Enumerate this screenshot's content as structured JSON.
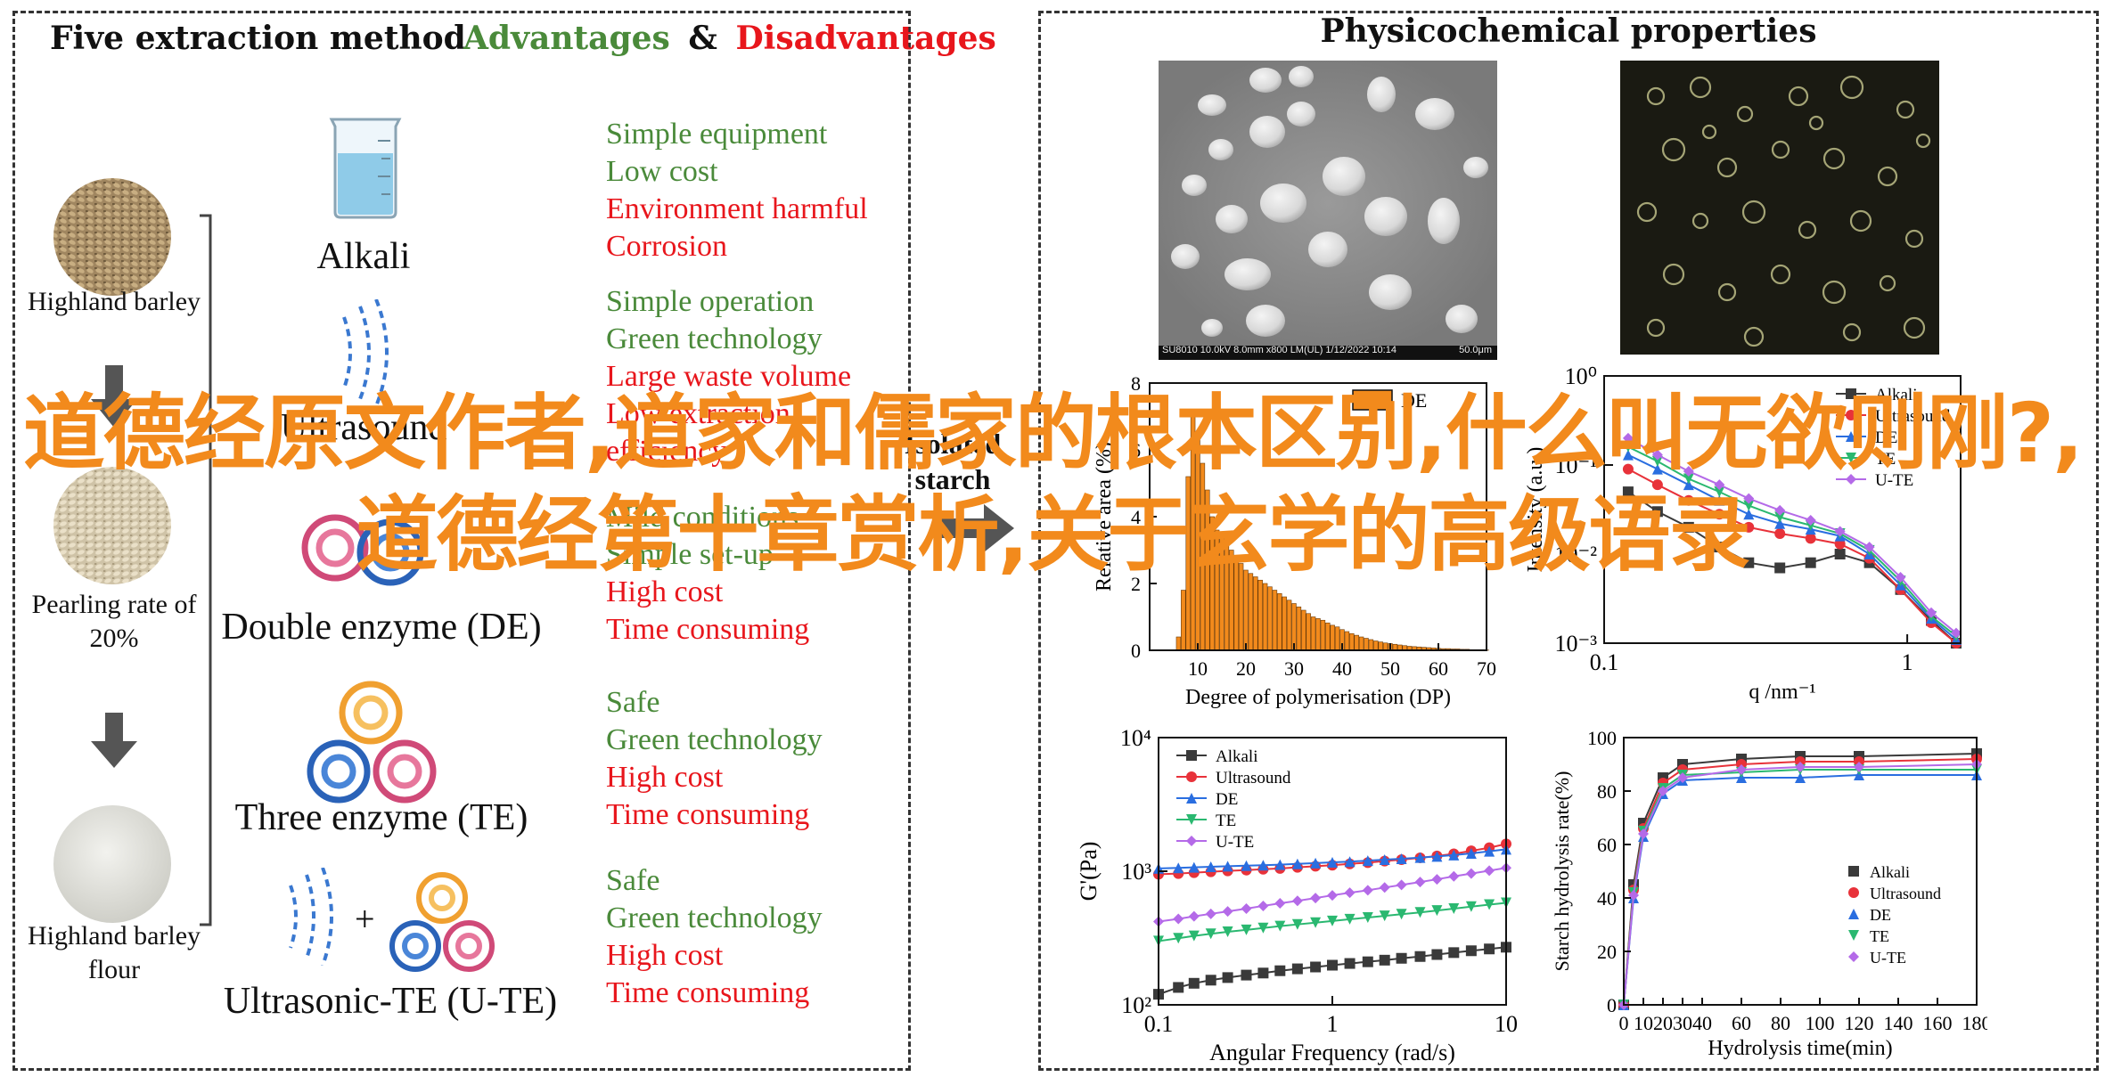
{
  "left_panel": {
    "title": "Five extraction method",
    "adv_label": "Advantages",
    "amp": "&",
    "dis_label": "Disadvantages",
    "raw": [
      {
        "label": "Highland barley"
      },
      {
        "label": "Pearling rate of 20%"
      },
      {
        "label": "Highland barley flour"
      }
    ],
    "methods": [
      {
        "name": "Alkali",
        "points": [
          {
            "text": "Simple equipment",
            "kind": "adv"
          },
          {
            "text": "Low cost",
            "kind": "adv"
          },
          {
            "text": "Environment harmful",
            "kind": "dis"
          },
          {
            "text": "Corrosion",
            "kind": "dis"
          }
        ]
      },
      {
        "name": "Ultrasound",
        "points": [
          {
            "text": "Simple operation",
            "kind": "adv"
          },
          {
            "text": "Green technology",
            "kind": "adv"
          },
          {
            "text": "Large waste volume",
            "kind": "dis"
          },
          {
            "text": "Low extraction",
            "kind": "dis"
          },
          {
            "text": "efficiency",
            "kind": "dis"
          }
        ]
      },
      {
        "name": "Double enzyme (DE)",
        "points": [
          {
            "text": "Mild conditions",
            "kind": "adv"
          },
          {
            "text": "Simple set-up",
            "kind": "adv"
          },
          {
            "text": "High cost",
            "kind": "dis"
          },
          {
            "text": "Time consuming",
            "kind": "dis"
          }
        ]
      },
      {
        "name": "Three enzyme (TE)",
        "points": [
          {
            "text": "Safe",
            "kind": "adv"
          },
          {
            "text": "Green technology",
            "kind": "adv"
          },
          {
            "text": "High cost",
            "kind": "dis"
          },
          {
            "text": "Time consuming",
            "kind": "dis"
          }
        ]
      },
      {
        "name": "Ultrasonic-TE (U-TE)",
        "points": [
          {
            "text": "Safe",
            "kind": "adv"
          },
          {
            "text": "Green technology",
            "kind": "adv"
          },
          {
            "text": "High cost",
            "kind": "dis"
          },
          {
            "text": "Time consuming",
            "kind": "dis"
          }
        ]
      }
    ],
    "isolated_label": "Isolated starch",
    "plus": "+"
  },
  "right_panel": {
    "title": "Physicochemical properties",
    "sem_caption": "SU8010 10.0kV 8.0mm x800 LM(UL) 1/12/2022 10:14",
    "sem_scale": "50.0μm"
  },
  "colors": {
    "adv": "#4a8a3a",
    "dis": "#e8161c",
    "overlay": "#f28a1c",
    "Alkali": "#3a3a3a",
    "Ultrasound": "#e8323a",
    "DE": "#2a6ee0",
    "TE": "#2ab870",
    "U-TE": "#b46ae8",
    "histogram": "#f28a1c"
  },
  "chart_data": [
    {
      "type": "bar",
      "legend": [
        "DE"
      ],
      "xlabel": "Degree of polymerisation (DP)",
      "ylabel": "Relative area (%)",
      "xticks": [
        10,
        20,
        30,
        40,
        50,
        60,
        70
      ],
      "yticks": [
        0,
        2,
        4,
        6,
        8
      ],
      "xlim": [
        0,
        70
      ],
      "ylim": [
        0,
        8
      ],
      "dp": [
        6,
        7,
        8,
        9,
        10,
        11,
        12,
        13,
        14,
        15,
        16,
        17,
        18,
        19,
        20,
        21,
        22,
        23,
        24,
        25,
        26,
        27,
        28,
        29,
        30,
        31,
        32,
        33,
        34,
        35,
        36,
        37,
        38,
        39,
        40,
        41,
        42,
        43,
        44,
        45,
        46,
        47,
        48,
        49,
        50,
        51,
        52,
        53,
        54,
        55,
        56,
        57,
        58,
        59,
        60,
        61,
        62,
        63,
        64,
        65,
        66,
        67,
        68,
        69,
        70
      ],
      "values": [
        0.4,
        1.8,
        5.2,
        7.0,
        6.4,
        5.6,
        4.8,
        4.0,
        3.6,
        3.4,
        3.2,
        3.0,
        2.8,
        2.6,
        2.4,
        2.3,
        2.2,
        2.1,
        2.0,
        1.9,
        1.8,
        1.7,
        1.6,
        1.5,
        1.4,
        1.3,
        1.2,
        1.1,
        1.0,
        0.95,
        0.9,
        0.82,
        0.75,
        0.7,
        0.62,
        0.56,
        0.5,
        0.45,
        0.4,
        0.36,
        0.32,
        0.28,
        0.25,
        0.22,
        0.2,
        0.18,
        0.16,
        0.14,
        0.12,
        0.11,
        0.1,
        0.09,
        0.08,
        0.07,
        0.06,
        0.05,
        0.05,
        0.04,
        0.04,
        0.03,
        0.03,
        0.02,
        0.02,
        0.02,
        0.01
      ]
    },
    {
      "type": "scatter",
      "log_x": true,
      "log_y": true,
      "xlabel": "q /nm⁻¹",
      "ylabel": "Intensity (a.u.)",
      "xlim": [
        0.1,
        1.5
      ],
      "ylim": [
        0.001,
        1
      ],
      "xticks": [
        "0.1",
        "1"
      ],
      "yticks": [
        "10⁰",
        "10⁻¹",
        "10⁻²",
        "10⁻³"
      ],
      "legend_position": "top-right",
      "x": [
        0.12,
        0.15,
        0.19,
        0.24,
        0.3,
        0.38,
        0.48,
        0.6,
        0.75,
        0.95,
        1.2,
        1.45
      ],
      "series": [
        {
          "name": "Alkali",
          "values": [
            0.05,
            0.03,
            0.02,
            0.012,
            0.008,
            0.007,
            0.008,
            0.01,
            0.008,
            0.004,
            0.0018,
            0.001
          ]
        },
        {
          "name": "Ultrasound",
          "values": [
            0.09,
            0.06,
            0.04,
            0.028,
            0.02,
            0.017,
            0.015,
            0.013,
            0.009,
            0.004,
            0.0017,
            0.001
          ]
        },
        {
          "name": "DE",
          "values": [
            0.13,
            0.09,
            0.06,
            0.04,
            0.028,
            0.022,
            0.019,
            0.016,
            0.01,
            0.0045,
            0.0019,
            0.0011
          ]
        },
        {
          "name": "TE",
          "values": [
            0.16,
            0.11,
            0.07,
            0.05,
            0.035,
            0.026,
            0.021,
            0.017,
            0.011,
            0.005,
            0.002,
            0.0012
          ]
        },
        {
          "name": "U-TE",
          "values": [
            0.2,
            0.13,
            0.085,
            0.06,
            0.042,
            0.031,
            0.024,
            0.018,
            0.012,
            0.0055,
            0.0022,
            0.0013
          ]
        }
      ]
    },
    {
      "type": "scatter",
      "log_x": true,
      "log_y": true,
      "xlabel": "Angular Frequency (rad/s)",
      "ylabel": "G'(Pa)",
      "xlim": [
        0.1,
        10
      ],
      "ylim": [
        100,
        10000
      ],
      "xticks": [
        "0.1",
        "1",
        "10"
      ],
      "yticks": [
        "10²",
        "10³",
        "10⁴"
      ],
      "legend_position": "top-left",
      "x": [
        0.1,
        0.13,
        0.16,
        0.2,
        0.25,
        0.32,
        0.4,
        0.5,
        0.63,
        0.8,
        1,
        1.26,
        1.6,
        2,
        2.5,
        3.2,
        4,
        5,
        6.3,
        8,
        10
      ],
      "series": [
        {
          "name": "Alkali",
          "values": [
            120,
            135,
            145,
            153,
            160,
            167,
            173,
            180,
            186,
            192,
            198,
            204,
            210,
            216,
            223,
            230,
            238,
            246,
            254,
            262,
            270
          ]
        },
        {
          "name": "Ultrasound",
          "values": [
            950,
            960,
            975,
            990,
            1005,
            1020,
            1035,
            1050,
            1070,
            1090,
            1110,
            1135,
            1160,
            1190,
            1220,
            1260,
            1300,
            1350,
            1420,
            1500,
            1600
          ]
        },
        {
          "name": "DE",
          "values": [
            1050,
            1060,
            1070,
            1080,
            1090,
            1100,
            1110,
            1120,
            1135,
            1150,
            1165,
            1180,
            1200,
            1220,
            1240,
            1265,
            1290,
            1320,
            1360,
            1410,
            1460
          ]
        },
        {
          "name": "TE",
          "values": [
            300,
            315,
            328,
            340,
            352,
            364,
            376,
            388,
            400,
            412,
            424,
            437,
            450,
            463,
            477,
            492,
            508,
            525,
            543,
            562,
            580
          ]
        },
        {
          "name": "U-TE",
          "values": [
            420,
            440,
            460,
            480,
            500,
            525,
            550,
            575,
            600,
            630,
            660,
            690,
            720,
            755,
            790,
            830,
            870,
            915,
            960,
            1010,
            1060
          ]
        }
      ]
    },
    {
      "type": "line",
      "xlabel": "Hydrolysis time(min)",
      "ylabel": "Starch hydrolysis rate(%)",
      "xlim": [
        0,
        180
      ],
      "ylim": [
        0,
        100
      ],
      "xticks": [
        0,
        10,
        20,
        30,
        40,
        60,
        80,
        100,
        120,
        140,
        160,
        180
      ],
      "yticks": [
        0,
        20,
        40,
        60,
        80,
        100
      ],
      "legend_position": "bottom-right",
      "x": [
        0,
        5,
        10,
        20,
        30,
        60,
        90,
        120,
        180
      ],
      "series": [
        {
          "name": "Alkali",
          "values": [
            0,
            45,
            68,
            85,
            90,
            92,
            93,
            93,
            94
          ]
        },
        {
          "name": "Ultrasound",
          "values": [
            0,
            43,
            66,
            83,
            88,
            90,
            91,
            91,
            92
          ]
        },
        {
          "name": "DE",
          "values": [
            0,
            40,
            63,
            79,
            84,
            85,
            85,
            86,
            86
          ]
        },
        {
          "name": "TE",
          "values": [
            0,
            42,
            65,
            81,
            86,
            87,
            88,
            88,
            88
          ]
        },
        {
          "name": "U-TE",
          "values": [
            0,
            41,
            64,
            80,
            85,
            88,
            89,
            89,
            90
          ]
        }
      ]
    }
  ],
  "overlay_text": "道德经原文作者,道家和儒家的根本区别,什么叫无欲则刚?,道德经第十章赏析,关于玄学的高级语录"
}
